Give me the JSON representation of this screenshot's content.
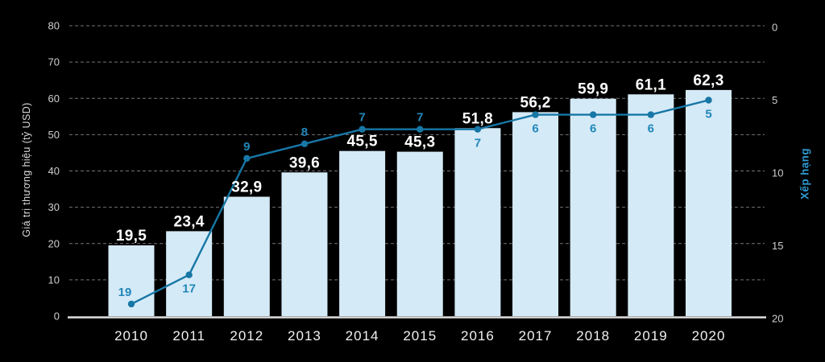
{
  "chart_data": {
    "type": "bar",
    "subtype": "bar-line-combo",
    "categories": [
      "2010",
      "2011",
      "2012",
      "2013",
      "2014",
      "2015",
      "2016",
      "2017",
      "2018",
      "2019",
      "2020"
    ],
    "series": [
      {
        "name": "Giá trị thương hiệu (tỷ USD)",
        "type": "bar",
        "axis": "left",
        "values": [
          19.5,
          23.4,
          32.9,
          39.6,
          45.5,
          45.3,
          51.8,
          56.2,
          59.9,
          61.1,
          62.3
        ],
        "value_labels": [
          "19,5",
          "23,4",
          "32,9",
          "39,6",
          "45,5",
          "45,3",
          "51,8",
          "56,2",
          "59,9",
          "61,1",
          "62,3"
        ]
      },
      {
        "name": "Xếp hạng",
        "type": "line",
        "axis": "right",
        "values": [
          19,
          17,
          9,
          8,
          7,
          7,
          7,
          6,
          6,
          6,
          5
        ],
        "value_labels": [
          "19",
          "17",
          "9",
          "8",
          "7",
          "7",
          "7",
          "6",
          "6",
          "6",
          "5"
        ],
        "label_placement": [
          "above",
          "below",
          "above",
          "above",
          "above",
          "above",
          "below",
          "below",
          "below",
          "below",
          "below"
        ]
      }
    ],
    "left_axis": {
      "label": "Giá trị thương hiệu (tỷ USD)",
      "min": 0,
      "max": 80,
      "ticks": [
        0,
        10,
        20,
        30,
        40,
        50,
        60,
        70,
        80
      ]
    },
    "right_axis": {
      "label": "Xếp hạng",
      "min": 0,
      "max": 20,
      "ticks": [
        0,
        5,
        10,
        15,
        20
      ],
      "inverted": true
    },
    "grid": {
      "style": "dashed",
      "orientation": "horizontal"
    },
    "legend": "none",
    "colors": {
      "background": "#000000",
      "bar_fill": "#d5eaf7",
      "line": "#1777a6",
      "marker": "#1777a6",
      "rank_label": "#2187ba",
      "bar_label": "#ffffff",
      "tick_label": "#cfcfcf",
      "year_label": "#f2f2f2",
      "right_axis_title": "#2e9bd3",
      "left_axis_title": "#dcdcdc",
      "gridline": "#757575",
      "axis_line": "#e0e0e0"
    }
  }
}
